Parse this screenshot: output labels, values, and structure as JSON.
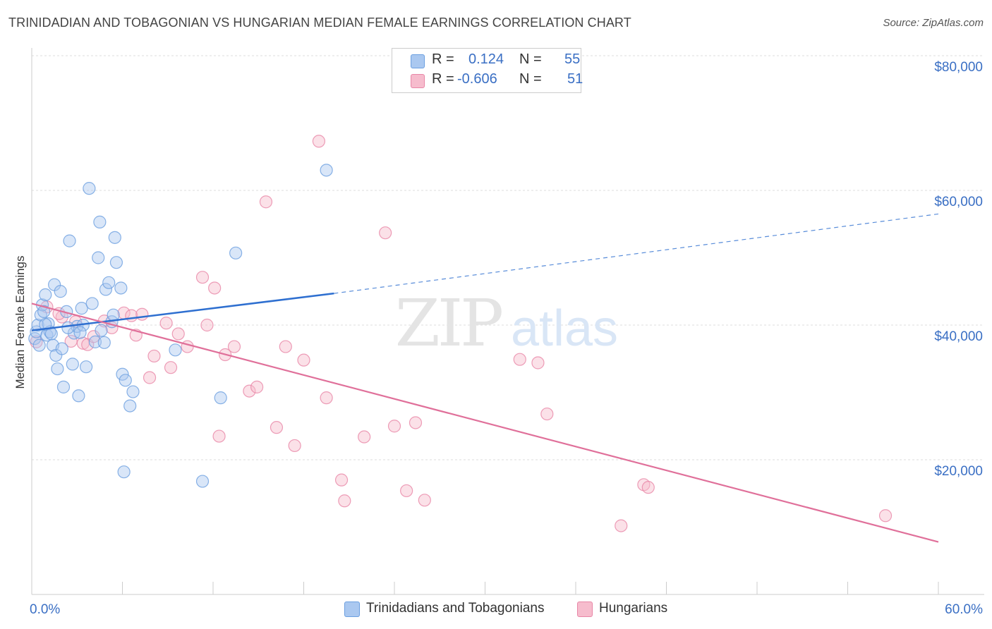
{
  "title": "TRINIDADIAN AND TOBAGONIAN VS HUNGARIAN MEDIAN FEMALE EARNINGS CORRELATION CHART",
  "source": "Source: ZipAtlas.com",
  "watermark": {
    "zip": "ZIP",
    "atlas": "atlas"
  },
  "legend": {
    "rows": [
      {
        "r_label": "R =",
        "r_value": "0.124",
        "n_label": "N =",
        "n_value": "55",
        "color": "#aac8f0"
      },
      {
        "r_label": "R =",
        "r_value": "-0.606",
        "n_label": "N =",
        "n_value": "51",
        "color": "#f6bccd"
      }
    ]
  },
  "bottom_legend": [
    {
      "label": "Trinidadians and Tobagonians",
      "color": "#aac8f0"
    },
    {
      "label": "Hungarians",
      "color": "#f6bccd"
    }
  ],
  "chart_data": {
    "type": "scatter",
    "title": "TRINIDADIAN AND TOBAGONIAN VS HUNGARIAN MEDIAN FEMALE EARNINGS CORRELATION CHART",
    "ylabel": "Median Female Earnings",
    "xlabel": "",
    "xlim": [
      0,
      60
    ],
    "ylim": [
      0,
      80000
    ],
    "x_tick_labels": [
      "0.0%",
      "60.0%"
    ],
    "y_tick_labels": [
      "$20,000",
      "$40,000",
      "$60,000",
      "$80,000"
    ],
    "y_tick_values": [
      20000,
      40000,
      60000,
      80000
    ],
    "grid": true,
    "series": [
      {
        "name": "Trinidadians and Tobagonians",
        "color": "#6b9fe0",
        "fill": "#aac8f0",
        "trend": {
          "x": [
            0,
            20
          ],
          "y": [
            39200,
            44700
          ],
          "dashed_to": [
            60,
            56500
          ],
          "color": "#2e6fd0"
        },
        "points": [
          [
            0.2,
            38000
          ],
          [
            0.3,
            39000
          ],
          [
            0.4,
            40000
          ],
          [
            0.5,
            37000
          ],
          [
            0.6,
            41500
          ],
          [
            0.7,
            43000
          ],
          [
            0.8,
            42000
          ],
          [
            0.9,
            44500
          ],
          [
            1.0,
            38500
          ],
          [
            1.1,
            40200
          ],
          [
            1.2,
            39000
          ],
          [
            1.4,
            37000
          ],
          [
            1.5,
            46000
          ],
          [
            1.6,
            35500
          ],
          [
            1.7,
            33500
          ],
          [
            1.9,
            45000
          ],
          [
            2.0,
            36500
          ],
          [
            2.1,
            30800
          ],
          [
            2.3,
            42000
          ],
          [
            2.5,
            52500
          ],
          [
            2.7,
            34200
          ],
          [
            2.8,
            38800
          ],
          [
            3.0,
            39800
          ],
          [
            3.1,
            29500
          ],
          [
            3.3,
            42500
          ],
          [
            3.4,
            40000
          ],
          [
            3.6,
            33800
          ],
          [
            3.8,
            60300
          ],
          [
            4.0,
            43200
          ],
          [
            4.2,
            37500
          ],
          [
            4.4,
            50000
          ],
          [
            4.5,
            55300
          ],
          [
            4.6,
            39200
          ],
          [
            4.9,
            45300
          ],
          [
            5.1,
            46300
          ],
          [
            5.3,
            40500
          ],
          [
            5.4,
            41500
          ],
          [
            5.5,
            53000
          ],
          [
            5.6,
            49300
          ],
          [
            5.9,
            45500
          ],
          [
            6.0,
            32700
          ],
          [
            6.1,
            18200
          ],
          [
            6.2,
            31800
          ],
          [
            6.5,
            28000
          ],
          [
            6.7,
            30100
          ],
          [
            9.5,
            36300
          ],
          [
            11.3,
            16800
          ],
          [
            12.5,
            29200
          ],
          [
            13.5,
            50700
          ],
          [
            19.5,
            63000
          ],
          [
            2.4,
            39600
          ],
          [
            3.2,
            38900
          ],
          [
            0.9,
            40100
          ],
          [
            1.3,
            38700
          ],
          [
            4.8,
            37400
          ]
        ]
      },
      {
        "name": "Hungarians",
        "color": "#e886a6",
        "fill": "#f6bccd",
        "trend": {
          "x": [
            0,
            60
          ],
          "y": [
            43200,
            7800
          ],
          "color": "#e0709a"
        },
        "points": [
          [
            0.3,
            37500
          ],
          [
            1.0,
            42700
          ],
          [
            2.0,
            41200
          ],
          [
            2.9,
            40500
          ],
          [
            3.4,
            37300
          ],
          [
            3.7,
            37100
          ],
          [
            4.1,
            38300
          ],
          [
            4.8,
            40600
          ],
          [
            5.3,
            39600
          ],
          [
            6.1,
            41800
          ],
          [
            6.6,
            41400
          ],
          [
            7.3,
            41600
          ],
          [
            7.8,
            32200
          ],
          [
            8.1,
            35400
          ],
          [
            8.9,
            40300
          ],
          [
            9.2,
            33700
          ],
          [
            9.7,
            38700
          ],
          [
            10.3,
            36800
          ],
          [
            11.3,
            47100
          ],
          [
            11.6,
            40000
          ],
          [
            12.1,
            45500
          ],
          [
            12.4,
            23500
          ],
          [
            12.8,
            35600
          ],
          [
            13.4,
            36800
          ],
          [
            14.4,
            30200
          ],
          [
            14.9,
            30800
          ],
          [
            15.5,
            58300
          ],
          [
            16.2,
            24800
          ],
          [
            16.8,
            36800
          ],
          [
            17.4,
            22100
          ],
          [
            18.0,
            34800
          ],
          [
            19.0,
            67300
          ],
          [
            19.5,
            29200
          ],
          [
            20.5,
            17000
          ],
          [
            20.7,
            13900
          ],
          [
            22.0,
            23400
          ],
          [
            23.4,
            53700
          ],
          [
            24.0,
            25000
          ],
          [
            24.8,
            15400
          ],
          [
            25.4,
            25500
          ],
          [
            26.0,
            14000
          ],
          [
            32.3,
            34900
          ],
          [
            33.5,
            34400
          ],
          [
            34.1,
            26800
          ],
          [
            39.0,
            10200
          ],
          [
            40.5,
            16300
          ],
          [
            40.8,
            15900
          ],
          [
            56.5,
            11700
          ],
          [
            1.8,
            41700
          ],
          [
            2.6,
            37600
          ],
          [
            6.9,
            38500
          ]
        ]
      }
    ]
  }
}
